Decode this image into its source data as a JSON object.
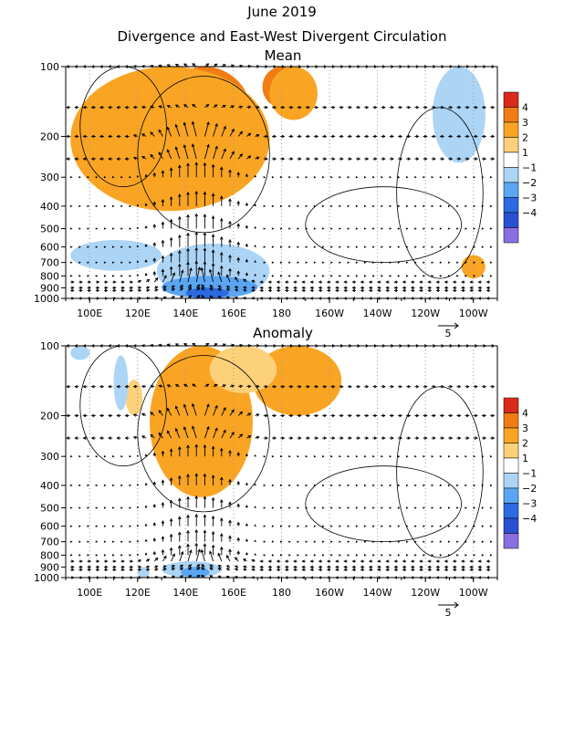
{
  "title_line1": "June 2019",
  "title_line2": "Divergence and East-West Divergent Circulation",
  "chart_data": [
    {
      "type": "heatmap",
      "panel_title": "Mean",
      "x_ticks": [
        "100E",
        "120E",
        "140E",
        "160E",
        "180",
        "160W",
        "140W",
        "120W",
        "100W"
      ],
      "y_ticks": [
        "100",
        "200",
        "300",
        "400",
        "500",
        "600",
        "700",
        "800",
        "900",
        "1000"
      ],
      "y_scale": "log (pressure, hPa)",
      "colorbar_levels": [
        "4",
        "3",
        "2",
        "1",
        "-1",
        "-2",
        "-3",
        "-4"
      ],
      "colorbar_colors": [
        "#d92a1c",
        "#f07c14",
        "#f9a523",
        "#fcd17a",
        "#ffffff",
        "#acd4f5",
        "#5aa6f2",
        "#2b6ae0",
        "#2a4fd0",
        "#8a6fe0"
      ],
      "regions": [
        {
          "level": 4,
          "lon": [
            137,
            158
          ],
          "p": [
            130,
            250
          ]
        },
        {
          "level": 3,
          "lon": [
            128,
            168
          ],
          "p": [
            100,
            280
          ]
        },
        {
          "level": 3,
          "lon": [
            172,
            188
          ],
          "p": [
            100,
            150
          ]
        },
        {
          "level": 2,
          "lon": [
            92,
            175
          ],
          "p": [
            100,
            420
          ]
        },
        {
          "level": 2,
          "lon": [
            175,
            195
          ],
          "p": [
            100,
            170
          ]
        },
        {
          "level": 2,
          "lon": [
            255,
            265
          ],
          "p": [
            650,
            820
          ]
        },
        {
          "level": -1,
          "lon": [
            92,
            130
          ],
          "p": [
            560,
            760
          ]
        },
        {
          "level": -1,
          "lon": [
            128,
            175
          ],
          "p": [
            580,
            1000
          ]
        },
        {
          "level": -1,
          "lon": [
            243,
            265
          ],
          "p": [
            100,
            260
          ]
        },
        {
          "level": -2,
          "lon": [
            130,
            170
          ],
          "p": [
            800,
            1000
          ]
        },
        {
          "level": -3,
          "lon": [
            140,
            158
          ],
          "p": [
            900,
            1000
          ]
        }
      ],
      "vector_key": "5"
    },
    {
      "type": "heatmap",
      "panel_title": "Anomaly",
      "x_ticks": [
        "100E",
        "120E",
        "140E",
        "160E",
        "180",
        "160W",
        "140W",
        "120W",
        "100W"
      ],
      "y_ticks": [
        "100",
        "200",
        "300",
        "400",
        "500",
        "600",
        "700",
        "800",
        "900",
        "1000"
      ],
      "y_scale": "log (pressure, hPa)",
      "colorbar_levels": [
        "4",
        "3",
        "2",
        "1",
        "-1",
        "-2",
        "-3",
        "-4"
      ],
      "colorbar_colors": [
        "#d92a1c",
        "#f07c14",
        "#f9a523",
        "#fcd17a",
        "#ffffff",
        "#acd4f5",
        "#5aa6f2",
        "#2b6ae0",
        "#2a4fd0",
        "#8a6fe0"
      ],
      "regions": [
        {
          "level": 3,
          "lon": [
            134,
            150
          ],
          "p": [
            180,
            300
          ]
        },
        {
          "level": 2,
          "lon": [
            125,
            168
          ],
          "p": [
            100,
            450
          ]
        },
        {
          "level": 2,
          "lon": [
            168,
            205
          ],
          "p": [
            100,
            200
          ]
        },
        {
          "level": 1,
          "lon": [
            150,
            178
          ],
          "p": [
            100,
            160
          ]
        },
        {
          "level": 1,
          "lon": [
            115,
            122
          ],
          "p": [
            140,
            200
          ]
        },
        {
          "level": -1,
          "lon": [
            92,
            100
          ],
          "p": [
            100,
            115
          ]
        },
        {
          "level": -1,
          "lon": [
            110,
            116
          ],
          "p": [
            110,
            190
          ]
        },
        {
          "level": -1,
          "lon": [
            130,
            155
          ],
          "p": [
            850,
            1000
          ]
        },
        {
          "level": -2,
          "lon": [
            138,
            150
          ],
          "p": [
            900,
            1000
          ]
        },
        {
          "level": -1,
          "lon": [
            120,
            125
          ],
          "p": [
            900,
            1000
          ]
        }
      ],
      "vector_key": "5"
    }
  ]
}
